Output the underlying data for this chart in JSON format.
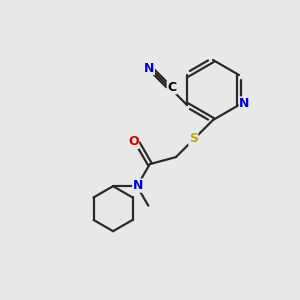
{
  "bg_color": "#e8e8e8",
  "atom_colors": {
    "C": "#000000",
    "N": "#0000cc",
    "O": "#cc0000",
    "S": "#bbaa00",
    "H": "#000000"
  },
  "figsize": [
    3.0,
    3.0
  ],
  "dpi": 100
}
